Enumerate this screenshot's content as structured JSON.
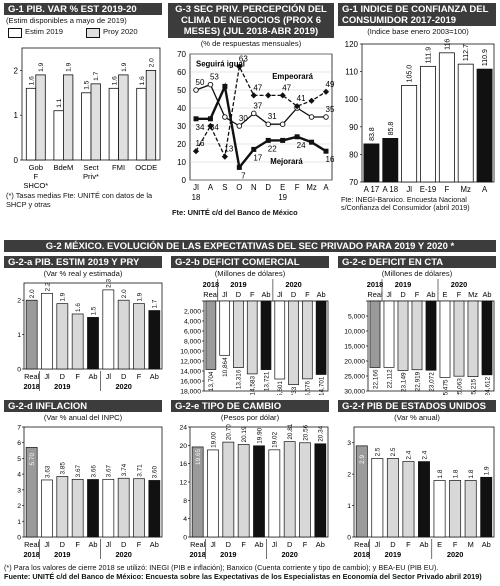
{
  "top": {
    "g1": {
      "header": "G-1  PIB. VAR % EST 2019-20",
      "subtitle": "(Estim disponibles a mayo de 2019)",
      "legend": [
        "Estim 2019",
        "Proy 2020"
      ],
      "note": "(*) Tasas medias Fte: UNITÉ con datos de la SHCP y otras"
    },
    "g3": {
      "header": "G-3  SEC PRIV. PERCEPCIÓN DEL CLIMA DE NEGOCIOS (PROX 6 MESES) (JUL 2018-ABR 2019)",
      "subtitle": "(% de respuestas mensuales)",
      "source": "Fte: UNITÉ c/d del Banco de México"
    },
    "g1b": {
      "header": "G-1  INDICE DE CONFIANZA DEL CONSUMIDOR 2017-2019",
      "subtitle": "(Indice base enero 2003=100)",
      "source": "Fte: INEGI-Banxico. Encuesta Nacional s/Confianza del Consumidor (abril 2019)"
    }
  },
  "g2": {
    "header": "G-2  MÉXICO. EVOLUCIÓN DE LAS EXPECTATIVAS DEL SEC PRIVADO PARA 2019 Y 2020 *",
    "a": {
      "header": "G-2-a PIB. ESTIM 2019 Y PRY 2020",
      "subtitle": "(Var % real y estimada)"
    },
    "b": {
      "header": "G-2-b  DEFICIT COMERCIAL",
      "subtitle": "(Millones de dólares)"
    },
    "c": {
      "header": "G-2-c DEFICIT EN CTA CORRIENTE",
      "subtitle": "(Millones de dólares)"
    },
    "d": {
      "header": "G-2-d  INFLACION",
      "subtitle": "(Var % anual del INPC)"
    },
    "e": {
      "header": "G-2-e  TIPO DE CAMBIO (CIERRE)",
      "subtitle": "(Pesos por dólar)"
    },
    "f": {
      "header": "G-2-f  PIB DE ESTADOS UNIDOS",
      "subtitle": "(Var % anual)"
    }
  },
  "footer": {
    "line1": "(*) Para los valores de cierre 2018 se utilizó: INEGI (PIB e inflación); Banxico (Cuenta corriente y tipo de cambio); y BEA-EU (PIB EU).",
    "line2": "Fuente: UNITÉ c/d del Banco de México: Encuesta sobre las Expectativas de los Especialistas en Economía del Sector Privado  abril 2019)"
  },
  "colors": {
    "header_bg": "#3c3c3c",
    "black": "#111111",
    "gray": "#cfcfcf",
    "light": "#e6e6e6",
    "real": "#9a9a9a"
  },
  "chart_data": [
    {
      "id": "g1",
      "type": "bar",
      "categories": [
        "Gob F SHCO*",
        "BdeM",
        "Sect Priv*",
        "FMI",
        "OCDE"
      ],
      "series": [
        {
          "name": "Estim 2019",
          "values": [
            1.6,
            1.1,
            1.5,
            1.6,
            1.6
          ]
        },
        {
          "name": "Proy 2020",
          "values": [
            1.9,
            1.9,
            1.7,
            1.9,
            2.0
          ]
        }
      ],
      "ylim": [
        0,
        2.5
      ],
      "yticks": [
        0,
        1,
        2
      ]
    },
    {
      "id": "g3",
      "type": "line",
      "categories": [
        "Jl",
        "A",
        "S",
        "O",
        "N",
        "D",
        "E",
        "F",
        "Mz",
        "A"
      ],
      "year_labels": [
        "18",
        "19"
      ],
      "series": [
        {
          "name": "Seguirá igual",
          "values": [
            50,
            53,
            35,
            30,
            37,
            31,
            31,
            40,
            35,
            35
          ]
        },
        {
          "name": "Empeorará",
          "values": [
            16,
            30,
            13,
            63,
            47,
            47,
            47,
            41,
            44,
            49
          ]
        },
        {
          "name": "Mejorará",
          "values": [
            34,
            34,
            52,
            7,
            17,
            22,
            22,
            24,
            21,
            16
          ]
        }
      ],
      "ylim": [
        0,
        70
      ],
      "yticks": [
        0,
        10,
        20,
        30,
        40,
        50,
        60,
        70
      ],
      "point_labels": [
        [
          50,
          53,
          null,
          30,
          37,
          31,
          null,
          null,
          null,
          35
        ],
        [
          16,
          null,
          13,
          63,
          47,
          null,
          47,
          41,
          null,
          49
        ],
        [
          34,
          34,
          null,
          7,
          17,
          22,
          null,
          24,
          null,
          16
        ]
      ]
    },
    {
      "id": "g1b",
      "type": "bar",
      "categories": [
        "A 17",
        "A 18",
        "Jl",
        "E-19",
        "F",
        "Mz",
        "A"
      ],
      "values": [
        83.8,
        85.8,
        105.0,
        111.9,
        116.8,
        112.7,
        110.9
      ],
      "value_labels": [
        "83.8",
        "85.8",
        "105.0",
        "111.9",
        "116.8",
        "112.7",
        "110.9"
      ],
      "ylim": [
        70,
        120
      ],
      "yticks": [
        70,
        80,
        90,
        100,
        110,
        120
      ]
    },
    {
      "id": "g2a",
      "type": "bar",
      "categories": [
        "Real",
        "Jl",
        "D",
        "F",
        "Ab",
        "Jl",
        "D",
        "F",
        "Ab"
      ],
      "groups": [
        "2018",
        "2019",
        "2020"
      ],
      "values": [
        2.0,
        2.2,
        1.9,
        1.6,
        1.5,
        2.3,
        2.0,
        1.9,
        1.7
      ],
      "ylim": [
        0,
        2.5
      ],
      "yticks": [
        0,
        1,
        2
      ]
    },
    {
      "id": "g2b",
      "type": "bar",
      "categories": [
        "Real",
        "Jl",
        "D",
        "F",
        "Ab",
        "Jl",
        "D",
        "F",
        "Ab"
      ],
      "groups": [
        "2018",
        "2019",
        "2020"
      ],
      "values": [
        -13704,
        -10864,
        -13316,
        -14583,
        -13721,
        -15601,
        -16733,
        -15576,
        -14701
      ],
      "value_labels": [
        "13,704",
        "10,864",
        "13,316",
        "14,583",
        "13,721",
        "15,601",
        "16,733",
        "15,576",
        "14,701"
      ],
      "ylim": [
        -18000,
        0
      ],
      "yticks": [
        0,
        -2000,
        -4000,
        -6000,
        -8000,
        -10000,
        -12000,
        -14000,
        -16000,
        -18000
      ],
      "ytick_labels": [
        "",
        "2,000",
        "4,000",
        "6,000",
        "8,000",
        "10,000",
        "12,000",
        "14,000",
        "16,000",
        "18,000"
      ]
    },
    {
      "id": "g2c",
      "type": "bar",
      "categories": [
        "Real",
        "Jl",
        "D",
        "F",
        "Ab",
        "E",
        "F",
        "Mz",
        "Ab"
      ],
      "groups": [
        "2018",
        "2019",
        "2020"
      ],
      "values": [
        -22166,
        -22112,
        -23149,
        -22919,
        -23072,
        -25475,
        -25063,
        -25215,
        -24612
      ],
      "value_labels": [
        "22,166",
        "22,112",
        "23,149",
        "22,919",
        "23,072",
        "25,475",
        "25,063",
        "25,215",
        "24,612"
      ],
      "ylim": [
        -30000,
        0
      ],
      "yticks": [
        0,
        -5000,
        -10000,
        -15000,
        -20000,
        -25000,
        -30000
      ],
      "ytick_labels": [
        "",
        "5,000",
        "10,000",
        "15,000",
        "20,000",
        "25,000",
        "30,000"
      ]
    },
    {
      "id": "g2d",
      "type": "bar",
      "categories": [
        "Real",
        "Jl",
        "D",
        "F",
        "Ab",
        "Jl",
        "D",
        "F",
        "Ab"
      ],
      "groups": [
        "2018",
        "2019",
        "2020"
      ],
      "values": [
        5.7,
        3.63,
        3.85,
        3.67,
        3.66,
        3.67,
        3.74,
        3.71,
        3.6
      ],
      "value_labels": [
        "5.70",
        "3.63",
        "3.85",
        "3.67",
        "3.66",
        "3.67",
        "3.74",
        "3.71",
        "3.60"
      ],
      "ylim": [
        0,
        7
      ],
      "yticks": [
        0,
        1,
        2,
        3,
        4,
        5,
        6,
        7
      ]
    },
    {
      "id": "g2e",
      "type": "bar",
      "categories": [
        "Real",
        "Jl",
        "D",
        "F",
        "Ab",
        "Jl",
        "D",
        "F",
        "Ab"
      ],
      "groups": [
        "2018",
        "2019",
        "2020"
      ],
      "values": [
        19.65,
        19.0,
        20.7,
        20.19,
        19.9,
        19.02,
        20.81,
        20.56,
        20.34
      ],
      "value_labels": [
        "19.65",
        "19.00",
        "20.70",
        "20.19",
        "19.90",
        "19.02",
        "20.81",
        "20.56",
        "20.34"
      ],
      "ylim": [
        0,
        24
      ],
      "yticks": [
        0,
        4,
        8,
        12,
        16,
        20,
        24
      ]
    },
    {
      "id": "g2f",
      "type": "bar",
      "categories": [
        "Real",
        "Jl",
        "D",
        "F",
        "Ab",
        "E",
        "F",
        "M",
        "Ab"
      ],
      "groups": [
        "2018",
        "2019",
        "2020"
      ],
      "values": [
        2.9,
        2.5,
        2.5,
        2.4,
        2.4,
        1.8,
        1.8,
        1.8,
        1.9
      ],
      "ylim": [
        0,
        3.5
      ],
      "yticks": [
        0,
        1,
        2,
        3
      ]
    }
  ]
}
